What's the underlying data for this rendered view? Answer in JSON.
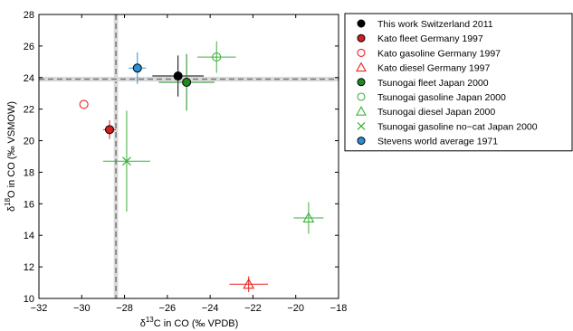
{
  "chart_data": {
    "type": "scatter",
    "xlabel": {
      "prefix": "δ",
      "sup": "13",
      "rest": "C in CO (‰ VPDB)"
    },
    "ylabel": {
      "prefix": "δ",
      "sup": "18",
      "rest": "O in CO (‰ VSMOW)"
    },
    "xlim": [
      -32,
      -18
    ],
    "ylim": [
      10,
      28
    ],
    "x_ticks": [
      -32,
      -30,
      -28,
      -26,
      -24,
      -22,
      -20,
      -18
    ],
    "y_ticks": [
      10,
      12,
      14,
      16,
      18,
      20,
      22,
      24,
      26,
      28
    ],
    "x_tick_labels": [
      "−32",
      "−30",
      "−28",
      "−26",
      "−24",
      "−22",
      "−20",
      "−18"
    ],
    "y_tick_labels": [
      "10",
      "12",
      "14",
      "16",
      "18",
      "20",
      "22",
      "24",
      "26",
      "28"
    ],
    "grid": false,
    "legend_position": "outside-right",
    "reference_lines": {
      "vertical": {
        "x": -28.4,
        "band": [
          -28.5,
          -28.3
        ]
      },
      "horizontal": {
        "y": 23.9,
        "band": [
          23.75,
          24.05
        ]
      }
    },
    "series": [
      {
        "name": "This work Switzerland 2011",
        "marker": "filled-circle",
        "color": "#000000",
        "points": [
          {
            "x": -25.5,
            "y": 24.1,
            "xerr": 1.2,
            "yerr": 1.3
          }
        ]
      },
      {
        "name": "Kato fleet Germany 1997",
        "marker": "filled-circle",
        "color": "#d21f1f",
        "points": [
          {
            "x": -28.7,
            "y": 20.7,
            "xerr": 0.3,
            "yerr": 0.6
          }
        ]
      },
      {
        "name": "Kato gasoline Germany 1997",
        "marker": "open-circle",
        "color": "#e8231e",
        "points": [
          {
            "x": -29.9,
            "y": 22.3,
            "xerr": 0.0,
            "yerr": 0.0
          }
        ]
      },
      {
        "name": "Kato diesel Germany 1997",
        "marker": "open-triangle",
        "color": "#e8231e",
        "points": [
          {
            "x": -22.2,
            "y": 10.9,
            "xerr": 0.9,
            "yerr": 0.5
          }
        ]
      },
      {
        "name": "Tsunogai fleet Japan 2000",
        "marker": "filled-circle",
        "color": "#1f8a1f",
        "points": [
          {
            "x": -25.1,
            "y": 23.7,
            "xerr": 1.3,
            "yerr": 1.8
          }
        ]
      },
      {
        "name": "Tsunogai gasoline Japan 2000",
        "marker": "open-circle",
        "color": "#3cb13c",
        "points": [
          {
            "x": -23.7,
            "y": 25.3,
            "xerr": 0.9,
            "yerr": 1.0
          }
        ]
      },
      {
        "name": "Tsunogai diesel Japan 2000",
        "marker": "open-triangle",
        "color": "#3cb13c",
        "points": [
          {
            "x": -19.4,
            "y": 15.1,
            "xerr": 0.7,
            "yerr": 1.0
          }
        ]
      },
      {
        "name": "Tsunogai gasoline no−cat Japan 2000",
        "marker": "cross",
        "color": "#3cb13c",
        "points": [
          {
            "x": -27.9,
            "y": 18.7,
            "xerr": 1.1,
            "yerr": 3.2
          }
        ]
      },
      {
        "name": "Stevens world average 1971",
        "marker": "filled-circle",
        "color": "#2d8fd5",
        "points": [
          {
            "x": -27.4,
            "y": 24.6,
            "xerr": 0.4,
            "yerr": 1.0
          }
        ]
      }
    ]
  }
}
